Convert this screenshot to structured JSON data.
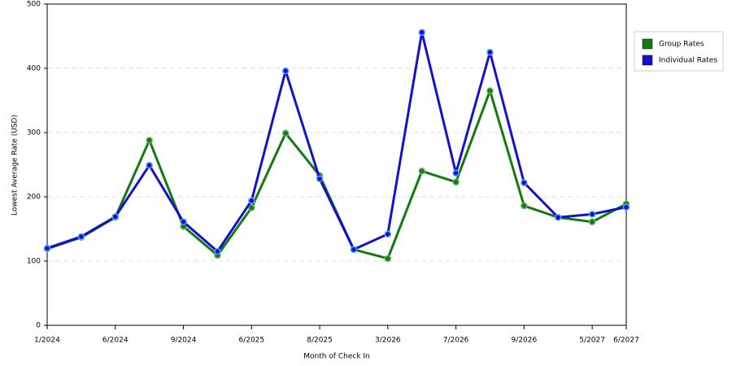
{
  "chart_data": {
    "type": "line",
    "x_label": "Month of Check In",
    "y_label": "Lowest Average Rate (USD)",
    "categories": [
      "1/2024",
      null,
      "6/2024",
      null,
      "9/2024",
      null,
      "6/2025",
      null,
      "8/2025",
      null,
      "3/2026",
      null,
      "7/2026",
      null,
      "9/2026",
      null,
      "5/2027",
      "6/2027"
    ],
    "series": [
      {
        "name": "Group Rates",
        "color": "#137a13",
        "values": [
          119,
          137,
          168,
          288,
          154,
          109,
          183,
          299,
          233,
          118,
          104,
          240,
          223,
          365,
          186,
          168,
          161,
          189
        ]
      },
      {
        "name": "Individual Rates",
        "color": "#1212c8",
        "values": [
          120,
          138,
          169,
          249,
          161,
          115,
          194,
          396,
          228,
          118,
          142,
          456,
          237,
          425,
          222,
          168,
          173,
          184
        ]
      }
    ],
    "ylim": [
      0,
      500
    ],
    "yticks": [
      0,
      100,
      200,
      300,
      400,
      500
    ],
    "grid": true,
    "legend": "right"
  }
}
